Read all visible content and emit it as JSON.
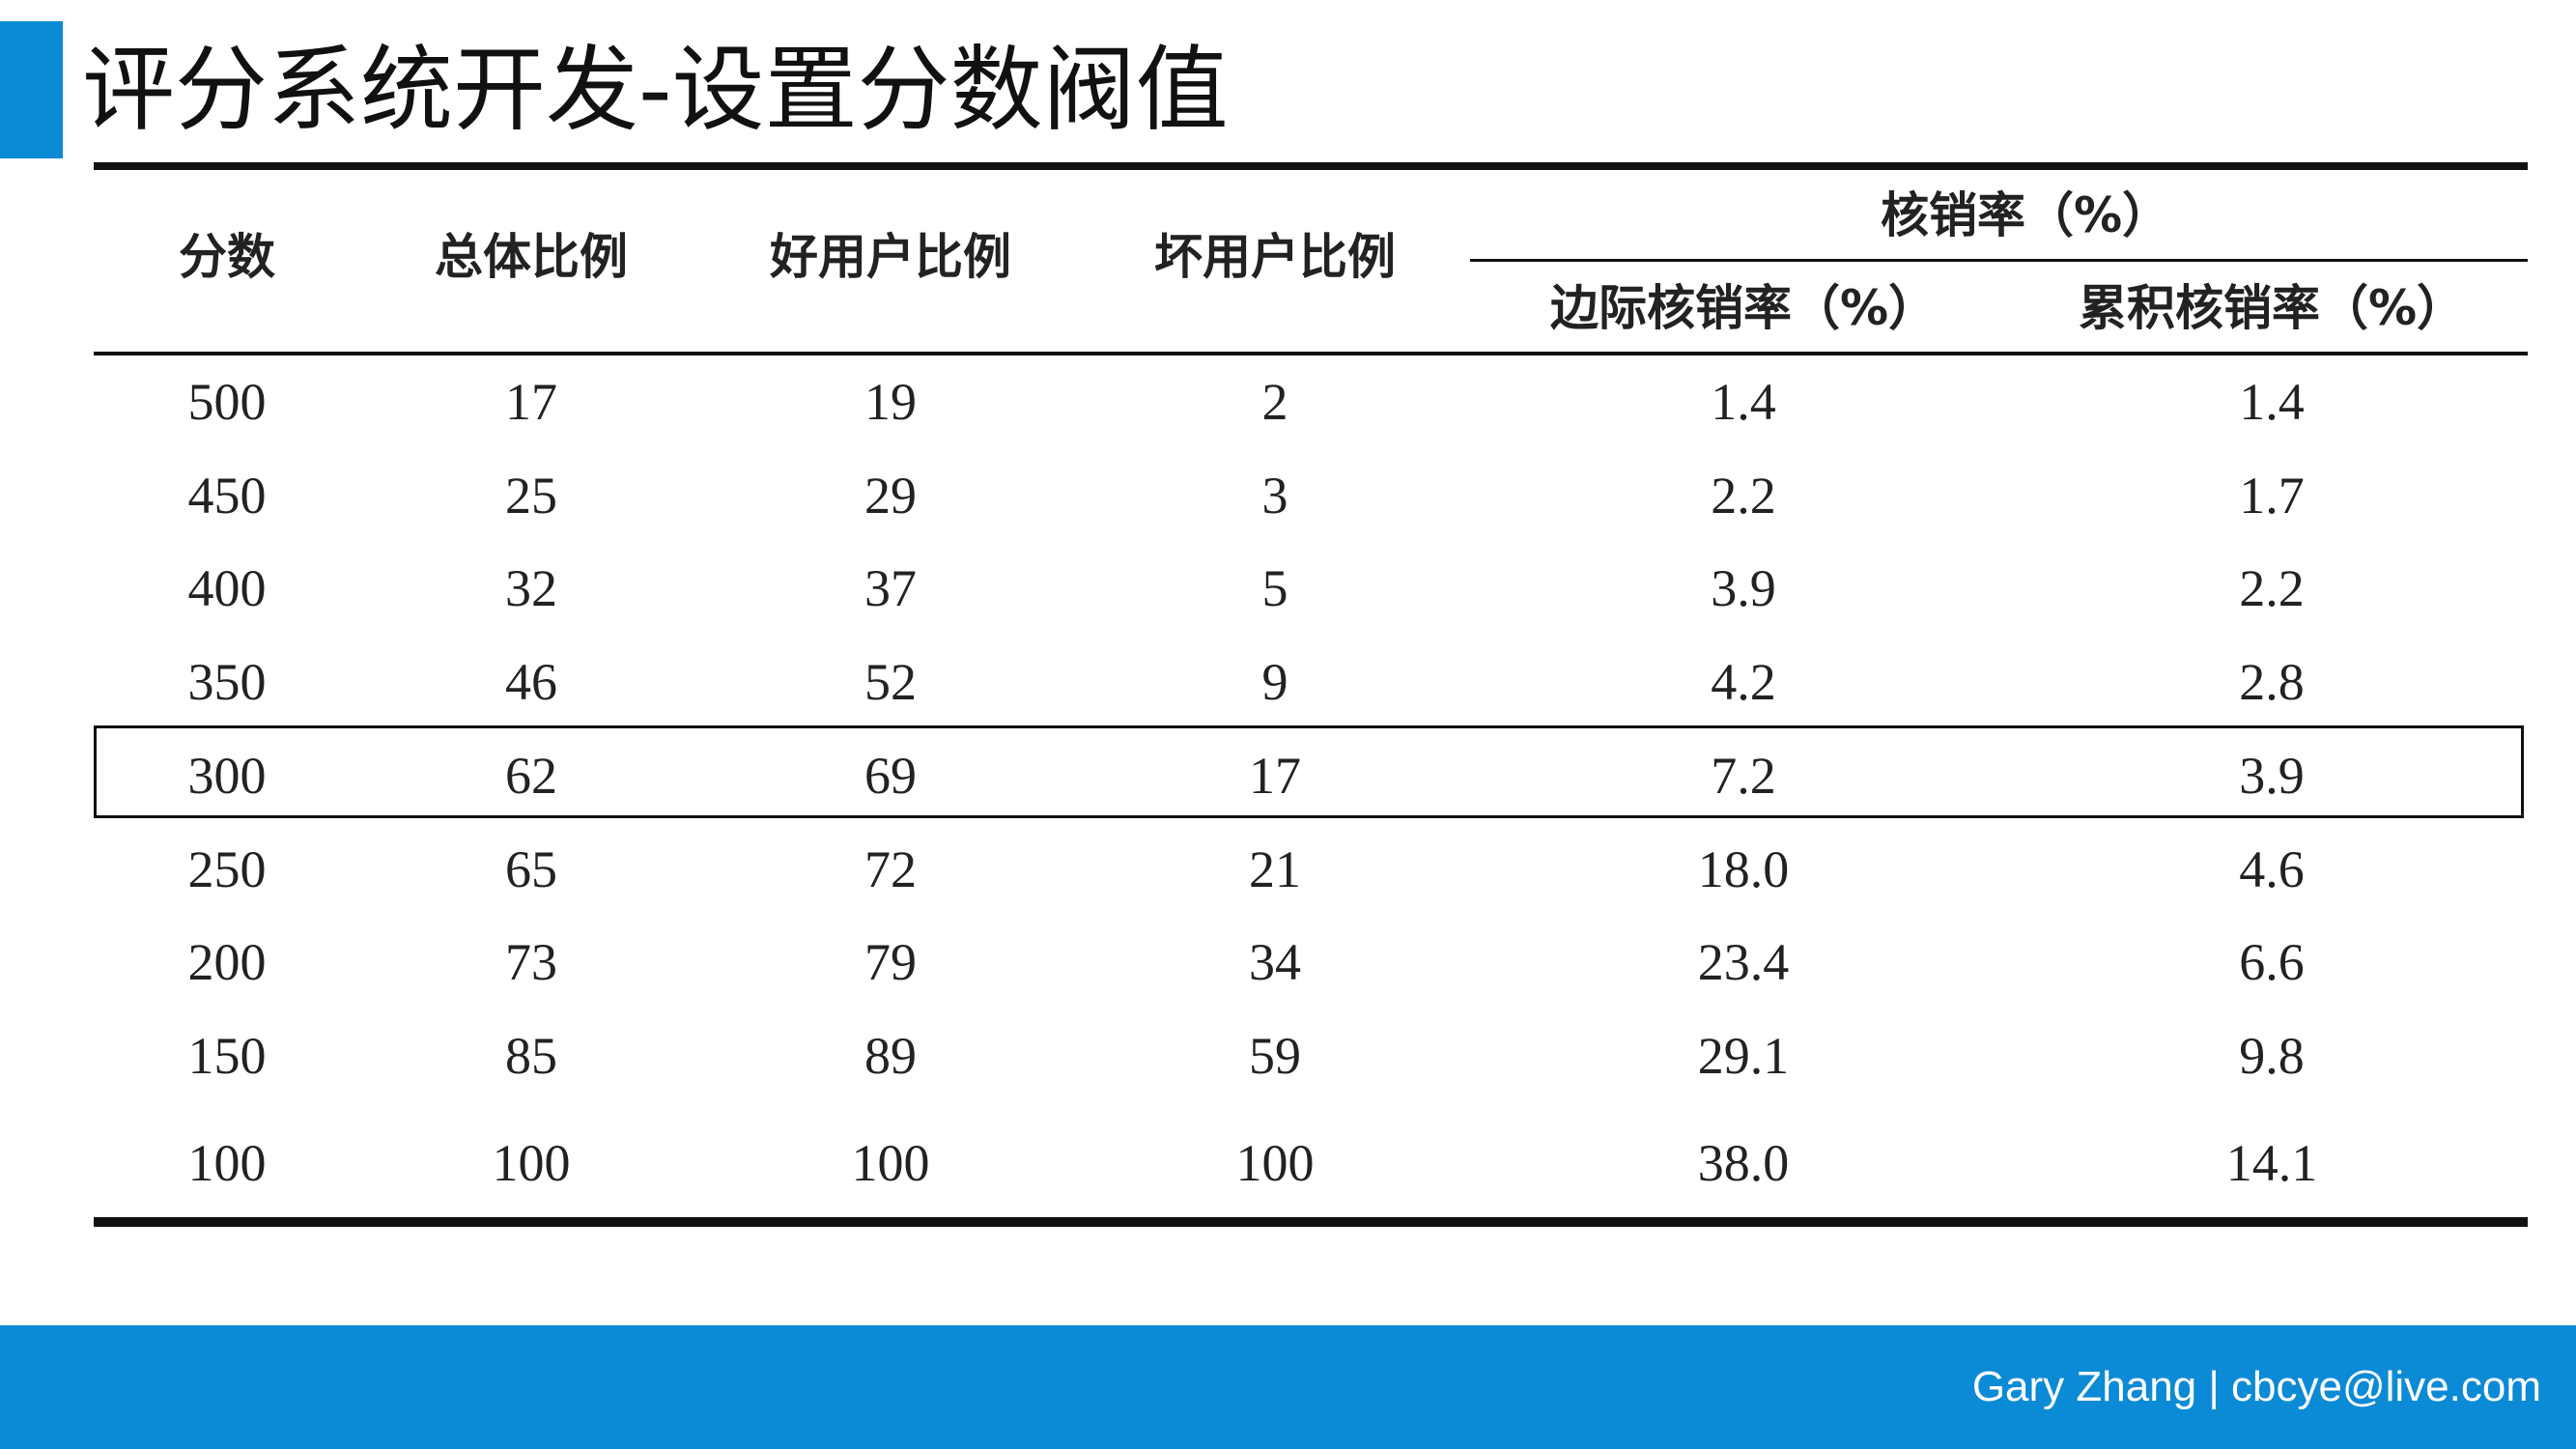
{
  "slide": {
    "title": "评分系统开发-设置分数阀值",
    "accent_color": "#0b8ad6"
  },
  "table": {
    "headers": {
      "score": "分数",
      "total_ratio": "总体比例",
      "good_ratio": "好用户比例",
      "bad_ratio": "坏用户比例",
      "writeoff_group": "核销率（%）",
      "marginal_writeoff": "边际核销率（%）",
      "cumulative_writeoff": "累积核销率（%）"
    },
    "rows": [
      [
        "500",
        "17",
        "19",
        "2",
        "1.4",
        "1.4"
      ],
      [
        "450",
        "25",
        "29",
        "3",
        "2.2",
        "1.7"
      ],
      [
        "400",
        "32",
        "37",
        "5",
        "3.9",
        "2.2"
      ],
      [
        "350",
        "46",
        "52",
        "9",
        "4.2",
        "2.8"
      ],
      [
        "300",
        "62",
        "69",
        "17",
        "7.2",
        "3.9"
      ],
      [
        "250",
        "65",
        "72",
        "21",
        "18.0",
        "4.6"
      ],
      [
        "200",
        "73",
        "79",
        "34",
        "23.4",
        "6.6"
      ],
      [
        "150",
        "85",
        "89",
        "59",
        "29.1",
        "9.8"
      ],
      [
        "100",
        "100",
        "100",
        "100",
        "38.0",
        "14.1"
      ]
    ],
    "highlighted_score": "300"
  },
  "footer": {
    "credit": "Gary Zhang | cbcye@live.com"
  }
}
